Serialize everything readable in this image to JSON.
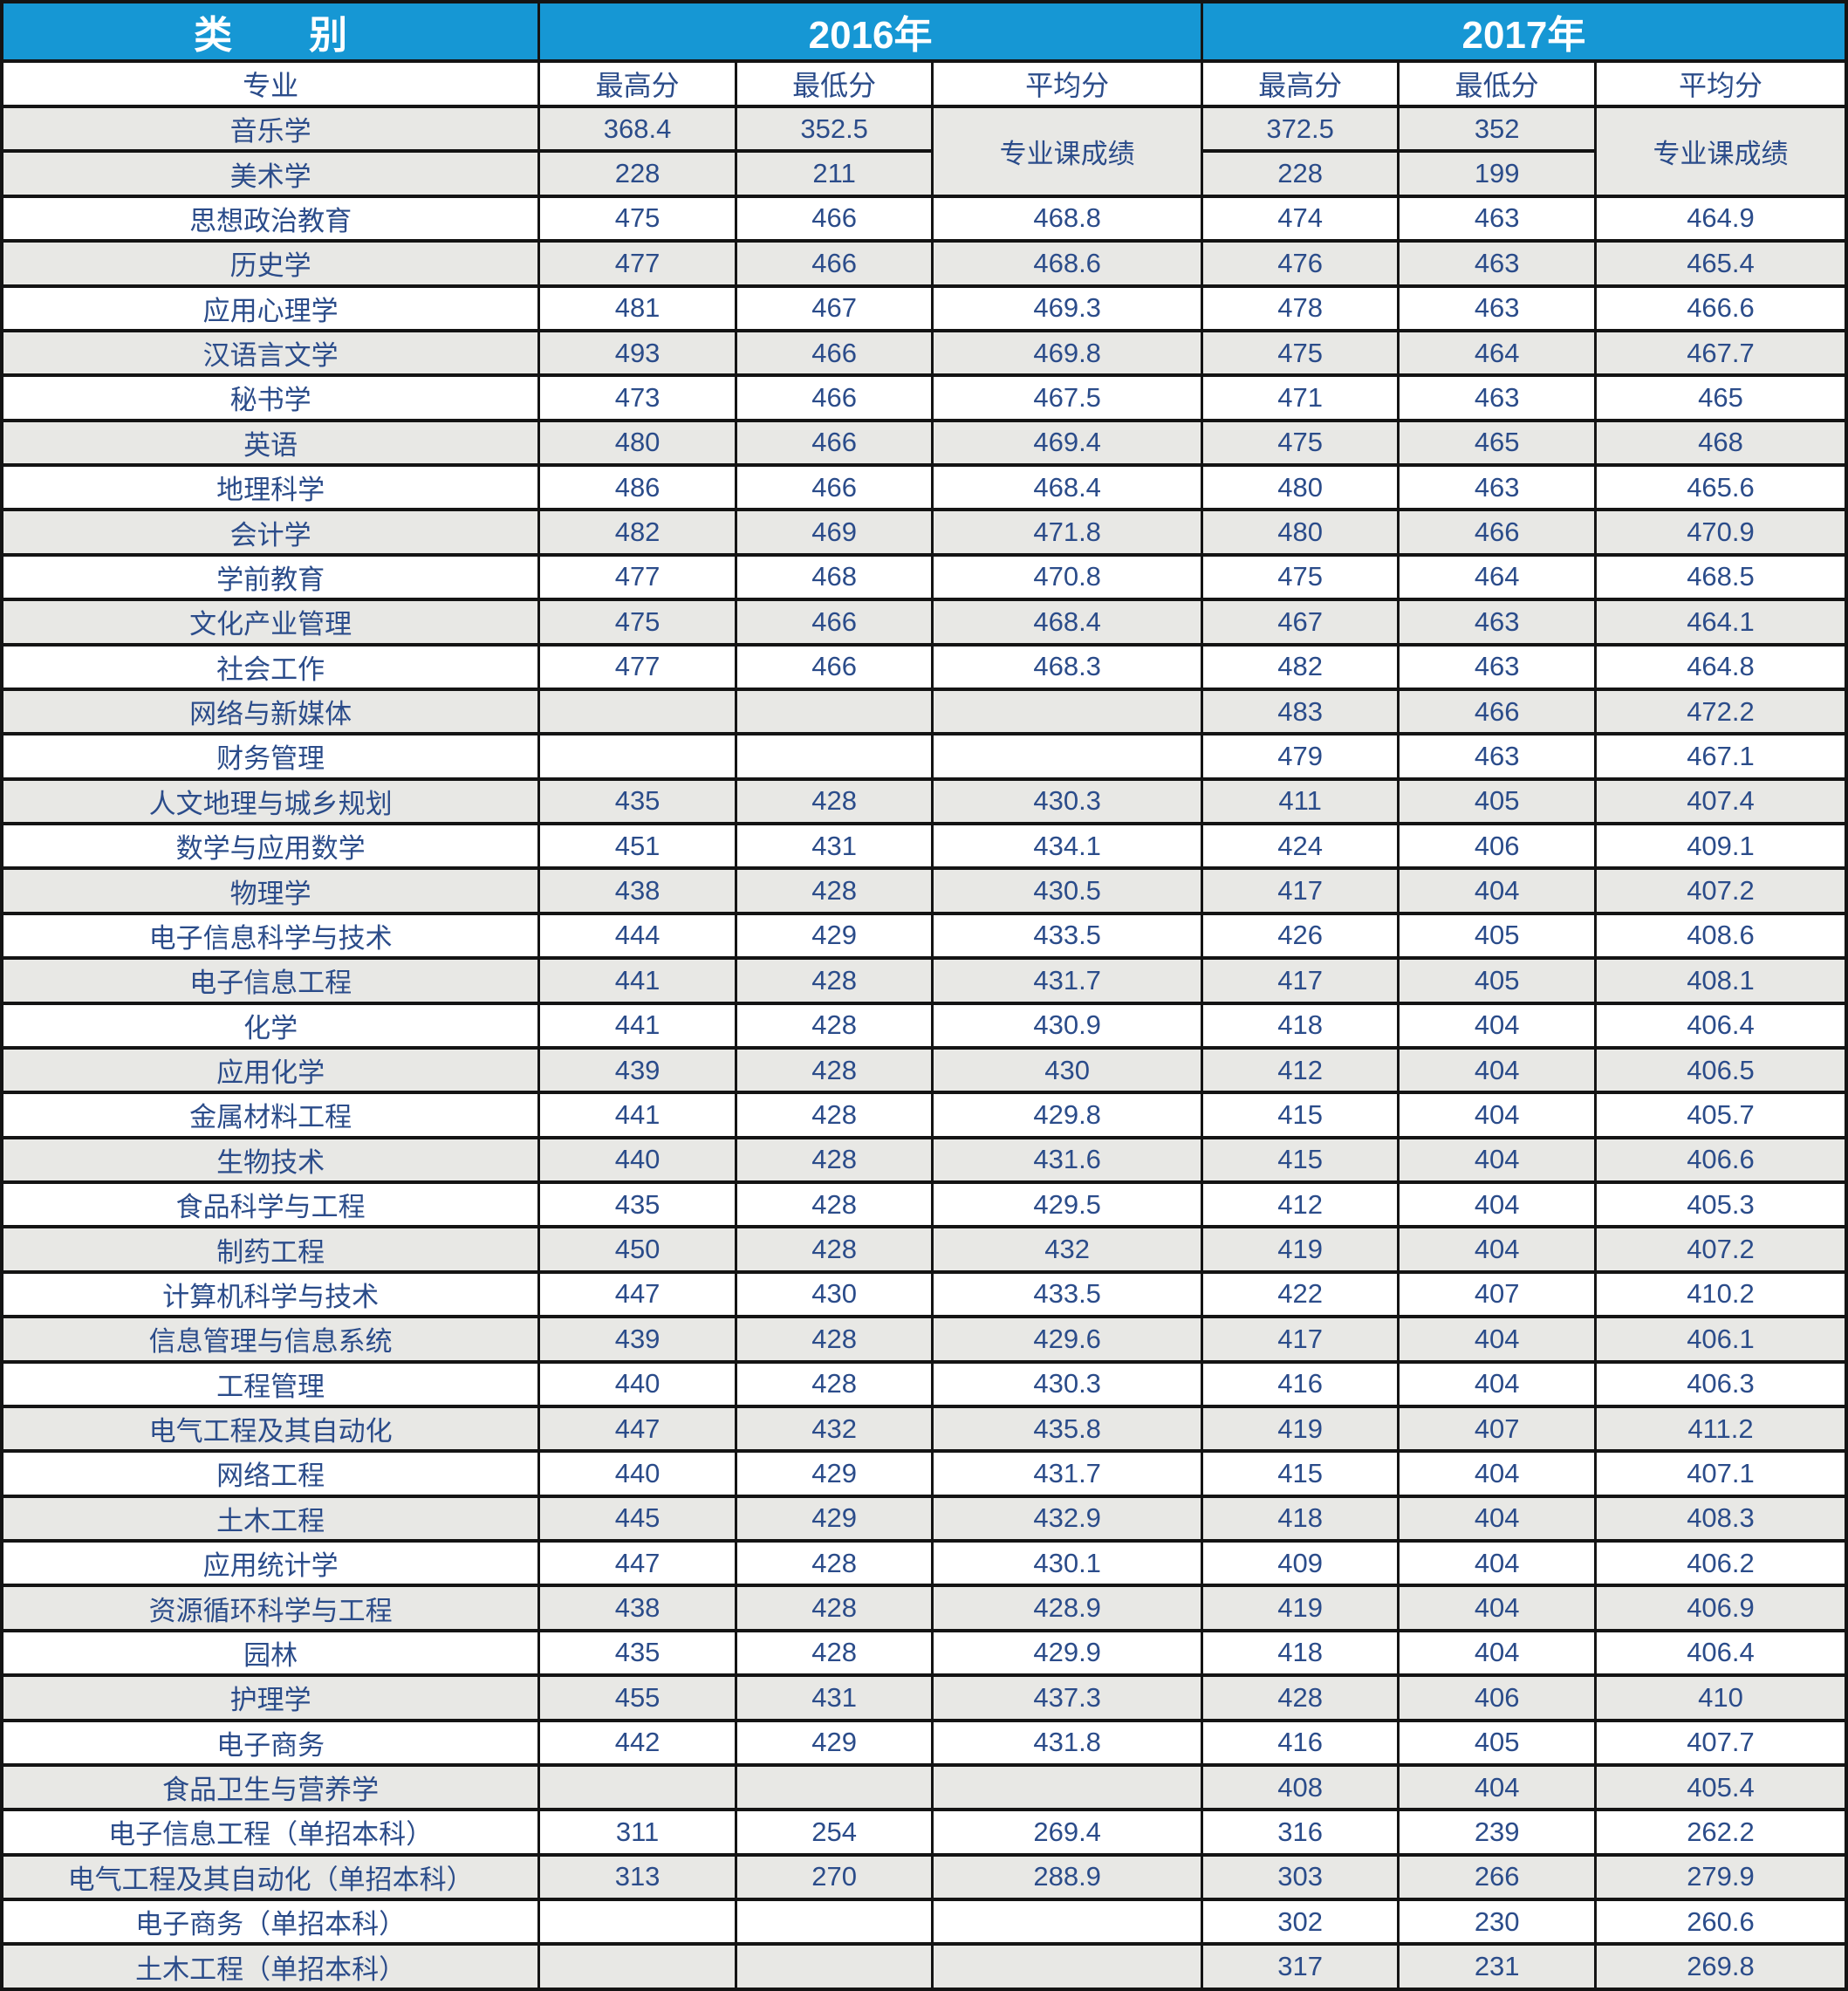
{
  "table": {
    "category_header": "类　　别",
    "year_headers": [
      "2016年",
      "2017年"
    ],
    "sub_headers": [
      "专业",
      "最高分",
      "最低分",
      "平均分",
      "最高分",
      "最低分",
      "平均分"
    ],
    "merged_avg_label": "专业课成绩",
    "rows": [
      {
        "major": "音乐学",
        "merged_avg": true,
        "y2016_max": "368.4",
        "y2016_min": "352.5",
        "y2017_max": "372.5",
        "y2017_min": "352"
      },
      {
        "major": "美术学",
        "merged_avg": true,
        "y2016_max": "228",
        "y2016_min": "211",
        "y2017_max": "228",
        "y2017_min": "199"
      },
      {
        "major": "思想政治教育",
        "y2016_max": "475",
        "y2016_min": "466",
        "y2016_avg": "468.8",
        "y2017_max": "474",
        "y2017_min": "463",
        "y2017_avg": "464.9"
      },
      {
        "major": "历史学",
        "y2016_max": "477",
        "y2016_min": "466",
        "y2016_avg": "468.6",
        "y2017_max": "476",
        "y2017_min": "463",
        "y2017_avg": "465.4"
      },
      {
        "major": "应用心理学",
        "y2016_max": "481",
        "y2016_min": "467",
        "y2016_avg": "469.3",
        "y2017_max": "478",
        "y2017_min": "463",
        "y2017_avg": "466.6"
      },
      {
        "major": "汉语言文学",
        "y2016_max": "493",
        "y2016_min": "466",
        "y2016_avg": "469.8",
        "y2017_max": "475",
        "y2017_min": "464",
        "y2017_avg": "467.7"
      },
      {
        "major": "秘书学",
        "y2016_max": "473",
        "y2016_min": "466",
        "y2016_avg": "467.5",
        "y2017_max": "471",
        "y2017_min": "463",
        "y2017_avg": "465"
      },
      {
        "major": "英语",
        "y2016_max": "480",
        "y2016_min": "466",
        "y2016_avg": "469.4",
        "y2017_max": "475",
        "y2017_min": "465",
        "y2017_avg": "468"
      },
      {
        "major": "地理科学",
        "y2016_max": "486",
        "y2016_min": "466",
        "y2016_avg": "468.4",
        "y2017_max": "480",
        "y2017_min": "463",
        "y2017_avg": "465.6"
      },
      {
        "major": "会计学",
        "y2016_max": "482",
        "y2016_min": "469",
        "y2016_avg": "471.8",
        "y2017_max": "480",
        "y2017_min": "466",
        "y2017_avg": "470.9"
      },
      {
        "major": "学前教育",
        "y2016_max": "477",
        "y2016_min": "468",
        "y2016_avg": "470.8",
        "y2017_max": "475",
        "y2017_min": "464",
        "y2017_avg": "468.5"
      },
      {
        "major": "文化产业管理",
        "y2016_max": "475",
        "y2016_min": "466",
        "y2016_avg": "468.4",
        "y2017_max": "467",
        "y2017_min": "463",
        "y2017_avg": "464.1"
      },
      {
        "major": "社会工作",
        "y2016_max": "477",
        "y2016_min": "466",
        "y2016_avg": "468.3",
        "y2017_max": "482",
        "y2017_min": "463",
        "y2017_avg": "464.8"
      },
      {
        "major": "网络与新媒体",
        "y2016_max": "",
        "y2016_min": "",
        "y2016_avg": "",
        "y2017_max": "483",
        "y2017_min": "466",
        "y2017_avg": "472.2"
      },
      {
        "major": "财务管理",
        "y2016_max": "",
        "y2016_min": "",
        "y2016_avg": "",
        "y2017_max": "479",
        "y2017_min": "463",
        "y2017_avg": "467.1"
      },
      {
        "major": "人文地理与城乡规划",
        "y2016_max": "435",
        "y2016_min": "428",
        "y2016_avg": "430.3",
        "y2017_max": "411",
        "y2017_min": "405",
        "y2017_avg": "407.4"
      },
      {
        "major": "数学与应用数学",
        "y2016_max": "451",
        "y2016_min": "431",
        "y2016_avg": "434.1",
        "y2017_max": "424",
        "y2017_min": "406",
        "y2017_avg": "409.1"
      },
      {
        "major": "物理学",
        "y2016_max": "438",
        "y2016_min": "428",
        "y2016_avg": "430.5",
        "y2017_max": "417",
        "y2017_min": "404",
        "y2017_avg": "407.2"
      },
      {
        "major": "电子信息科学与技术",
        "y2016_max": "444",
        "y2016_min": "429",
        "y2016_avg": "433.5",
        "y2017_max": "426",
        "y2017_min": "405",
        "y2017_avg": "408.6"
      },
      {
        "major": "电子信息工程",
        "y2016_max": "441",
        "y2016_min": "428",
        "y2016_avg": "431.7",
        "y2017_max": "417",
        "y2017_min": "405",
        "y2017_avg": "408.1"
      },
      {
        "major": "化学",
        "y2016_max": "441",
        "y2016_min": "428",
        "y2016_avg": "430.9",
        "y2017_max": "418",
        "y2017_min": "404",
        "y2017_avg": "406.4"
      },
      {
        "major": "应用化学",
        "y2016_max": "439",
        "y2016_min": "428",
        "y2016_avg": "430",
        "y2017_max": "412",
        "y2017_min": "404",
        "y2017_avg": "406.5"
      },
      {
        "major": "金属材料工程",
        "y2016_max": "441",
        "y2016_min": "428",
        "y2016_avg": "429.8",
        "y2017_max": "415",
        "y2017_min": "404",
        "y2017_avg": "405.7"
      },
      {
        "major": "生物技术",
        "y2016_max": "440",
        "y2016_min": "428",
        "y2016_avg": "431.6",
        "y2017_max": "415",
        "y2017_min": "404",
        "y2017_avg": "406.6"
      },
      {
        "major": "食品科学与工程",
        "y2016_max": "435",
        "y2016_min": "428",
        "y2016_avg": "429.5",
        "y2017_max": "412",
        "y2017_min": "404",
        "y2017_avg": "405.3"
      },
      {
        "major": "制药工程",
        "y2016_max": "450",
        "y2016_min": "428",
        "y2016_avg": "432",
        "y2017_max": "419",
        "y2017_min": "404",
        "y2017_avg": "407.2"
      },
      {
        "major": "计算机科学与技术",
        "y2016_max": "447",
        "y2016_min": "430",
        "y2016_avg": "433.5",
        "y2017_max": "422",
        "y2017_min": "407",
        "y2017_avg": "410.2"
      },
      {
        "major": "信息管理与信息系统",
        "y2016_max": "439",
        "y2016_min": "428",
        "y2016_avg": "429.6",
        "y2017_max": "417",
        "y2017_min": "404",
        "y2017_avg": "406.1"
      },
      {
        "major": "工程管理",
        "y2016_max": "440",
        "y2016_min": "428",
        "y2016_avg": "430.3",
        "y2017_max": "416",
        "y2017_min": "404",
        "y2017_avg": "406.3"
      },
      {
        "major": "电气工程及其自动化",
        "y2016_max": "447",
        "y2016_min": "432",
        "y2016_avg": "435.8",
        "y2017_max": "419",
        "y2017_min": "407",
        "y2017_avg": "411.2"
      },
      {
        "major": "网络工程",
        "y2016_max": "440",
        "y2016_min": "429",
        "y2016_avg": "431.7",
        "y2017_max": "415",
        "y2017_min": "404",
        "y2017_avg": "407.1"
      },
      {
        "major": "土木工程",
        "y2016_max": "445",
        "y2016_min": "429",
        "y2016_avg": "432.9",
        "y2017_max": "418",
        "y2017_min": "404",
        "y2017_avg": "408.3"
      },
      {
        "major": "应用统计学",
        "y2016_max": "447",
        "y2016_min": "428",
        "y2016_avg": "430.1",
        "y2017_max": "409",
        "y2017_min": "404",
        "y2017_avg": "406.2"
      },
      {
        "major": "资源循环科学与工程",
        "y2016_max": "438",
        "y2016_min": "428",
        "y2016_avg": "428.9",
        "y2017_max": "419",
        "y2017_min": "404",
        "y2017_avg": "406.9"
      },
      {
        "major": "园林",
        "y2016_max": "435",
        "y2016_min": "428",
        "y2016_avg": "429.9",
        "y2017_max": "418",
        "y2017_min": "404",
        "y2017_avg": "406.4"
      },
      {
        "major": "护理学",
        "y2016_max": "455",
        "y2016_min": "431",
        "y2016_avg": "437.3",
        "y2017_max": "428",
        "y2017_min": "406",
        "y2017_avg": "410"
      },
      {
        "major": "电子商务",
        "y2016_max": "442",
        "y2016_min": "429",
        "y2016_avg": "431.8",
        "y2017_max": "416",
        "y2017_min": "405",
        "y2017_avg": "407.7"
      },
      {
        "major": "食品卫生与营养学",
        "y2016_max": "",
        "y2016_min": "",
        "y2016_avg": "",
        "y2017_max": "408",
        "y2017_min": "404",
        "y2017_avg": "405.4"
      },
      {
        "major": "电子信息工程（单招本科）",
        "y2016_max": "311",
        "y2016_min": "254",
        "y2016_avg": "269.4",
        "y2017_max": "316",
        "y2017_min": "239",
        "y2017_avg": "262.2"
      },
      {
        "major": "电气工程及其自动化（单招本科）",
        "y2016_max": "313",
        "y2016_min": "270",
        "y2016_avg": "288.9",
        "y2017_max": "303",
        "y2017_min": "266",
        "y2017_avg": "279.9"
      },
      {
        "major": "电子商务（单招本科）",
        "y2016_max": "",
        "y2016_min": "",
        "y2016_avg": "",
        "y2017_max": "302",
        "y2017_min": "230",
        "y2017_avg": "260.6"
      },
      {
        "major": "土木工程（单招本科）",
        "y2016_max": "",
        "y2016_min": "",
        "y2016_avg": "",
        "y2017_max": "317",
        "y2017_min": "231",
        "y2017_avg": "269.8"
      }
    ]
  },
  "colors": {
    "header_bg": "#1697D4",
    "text": "#2B4C8A",
    "row_alt": "#E8E8E5",
    "border": "#141414"
  }
}
